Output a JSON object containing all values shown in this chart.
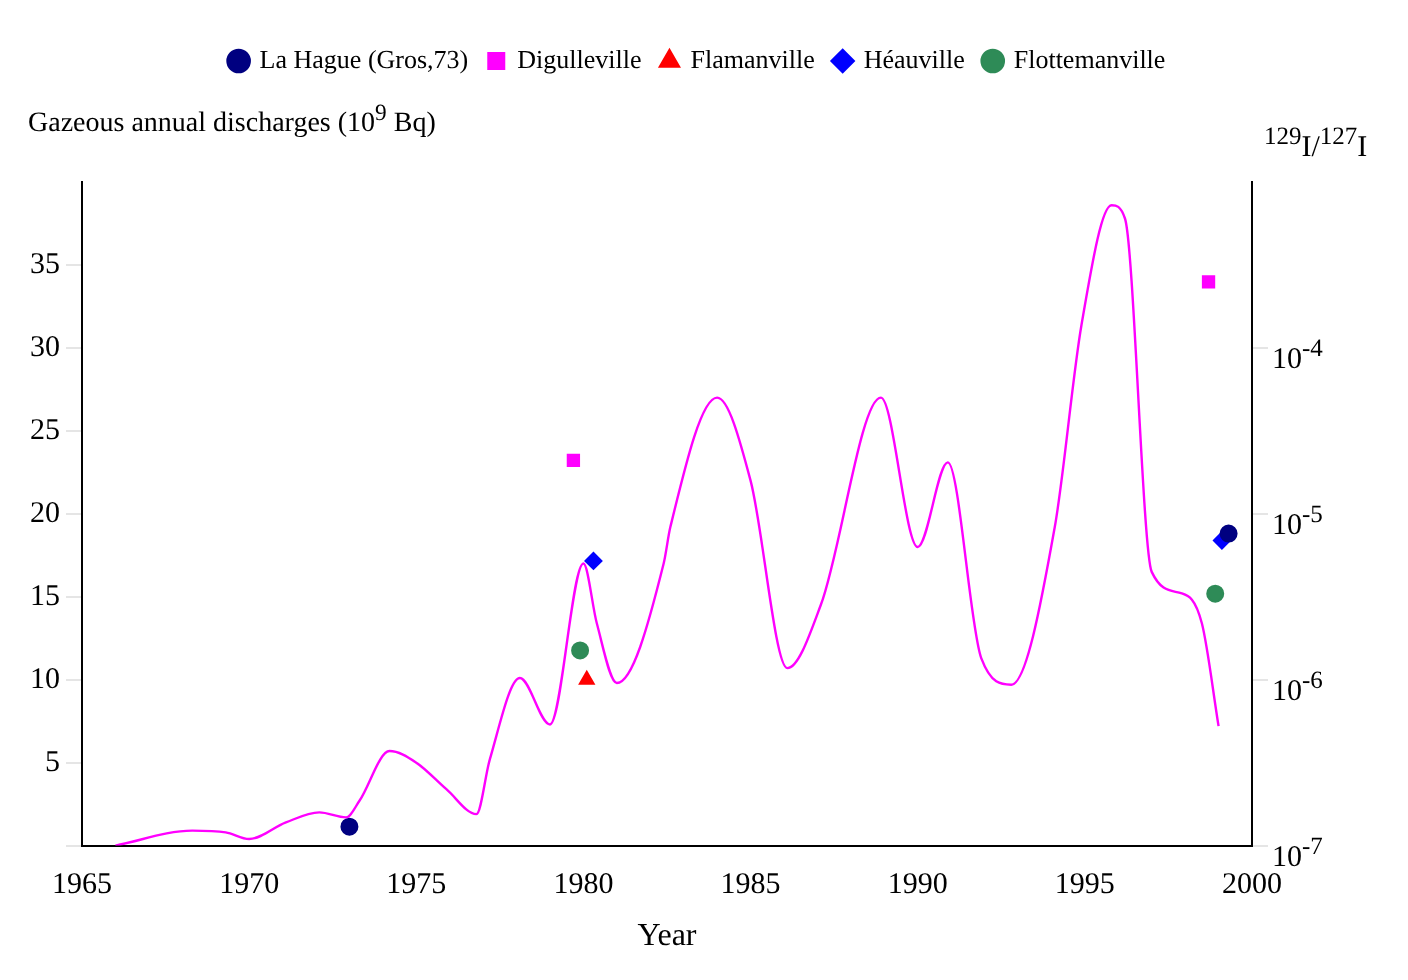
{
  "chart_data": {
    "type": "line",
    "ylabel": "Gazeous annual discharges (10$^{9}$ Bq)",
    "y2label": "$^{129}$I/$^{127}$I",
    "xlabel": "Year",
    "xlim": [
      1965,
      2000
    ],
    "xticks": [
      1965,
      1970,
      1975,
      1980,
      1985,
      1990,
      1995,
      2000
    ],
    "ylim": [
      0,
      40
    ],
    "yticks": [
      {
        "value": 0,
        "label": null
      },
      5,
      10,
      15,
      20,
      25,
      30,
      35
    ],
    "y2lim": [
      1e-07,
      0.001
    ],
    "y2ticks": [
      {
        "value": 1e-07,
        "label": "10$^{-7}$"
      },
      {
        "value": 1e-06,
        "label": "10$^{-6}$"
      },
      {
        "value": 1e-05,
        "label": "10$^{-5}$"
      },
      {
        "value": 0.0001,
        "label": "10$^{-4}$"
      }
    ],
    "log": "y2",
    "grid": false,
    "legend": "top",
    "series": [
      {
        "type": "line",
        "color": "#ff00ff",
        "x": [
          1966.0,
          1968.3,
          1969.3,
          1970.0,
          1971.1,
          1972.1,
          1972.9,
          1973.3,
          1974.2,
          1975.0,
          1975.9,
          1976.8,
          1977.2,
          1978.1,
          1979.0,
          1980.0,
          1980.4,
          1981.0,
          1982.4,
          1982.6,
          1984.0,
          1985.0,
          1986.1,
          1987.1,
          1988.9,
          1990.0,
          1990.9,
          1991.9,
          1992.8,
          1994.1,
          1994.9,
          1995.8,
          1996.2,
          1997.0,
          1997.9,
          1998.5,
          1999.0
        ],
        "values": [
          0,
          0.9,
          0.8,
          0.4,
          1.4,
          2.0,
          1.7,
          2.7,
          5.7,
          5.0,
          3.4,
          1.9,
          5.2,
          10.1,
          7.3,
          17.0,
          13.4,
          9.8,
          17.0,
          19.2,
          27.0,
          22.0,
          10.7,
          14.5,
          27.0,
          18.0,
          23.1,
          11.3,
          9.7,
          19.2,
          31.4,
          38.6,
          37.8,
          16.5,
          15.2,
          13.4,
          7.2
        ]
      },
      {
        "type": "scatter",
        "name": "La Hague (Gros,73)",
        "color": "#000080",
        "axis": "y2",
        "marker": "circle",
        "x": [
          1973,
          1999.3
        ],
        "values": [
          1.3e-07,
          7.6e-06
        ]
      },
      {
        "type": "scatter",
        "name": "Digulleville",
        "color": "#ff00ff",
        "axis": "y2",
        "marker": "square",
        "x": [
          1979.7,
          1998.7
        ],
        "values": [
          2.1e-05,
          0.00025
        ]
      },
      {
        "type": "scatter",
        "name": "Flamanville",
        "color": "#ff0000",
        "axis": "y2",
        "marker": "triangle",
        "x": [
          1980.1
        ],
        "values": [
          1e-06
        ]
      },
      {
        "type": "scatter",
        "name": "Héauville",
        "color": "#0000ff",
        "axis": "y2",
        "marker": "diamond",
        "x": [
          1980.3,
          1999.1
        ],
        "values": [
          5.2e-06,
          6.9e-06
        ]
      },
      {
        "type": "scatter",
        "name": "Flottemanville",
        "color": "#2e8b57",
        "axis": "y2",
        "marker": "circle",
        "x": [
          1979.9,
          1998.9
        ],
        "values": [
          1.5e-06,
          3.3e-06
        ]
      }
    ]
  }
}
